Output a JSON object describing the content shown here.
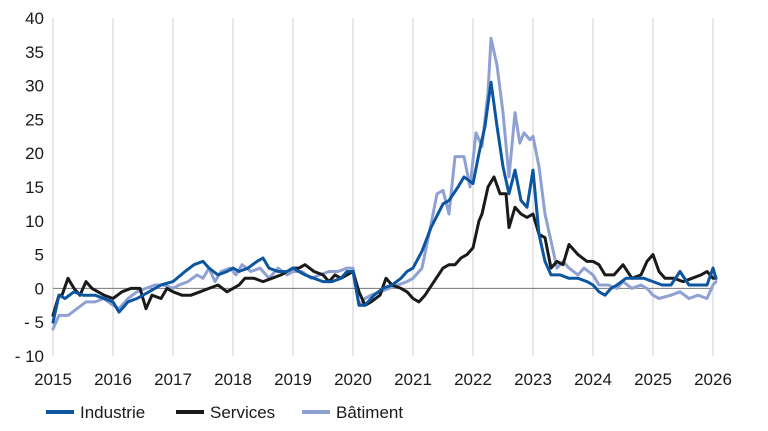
{
  "chart_data": {
    "type": "line",
    "title": "",
    "xlabel": "",
    "ylabel": "",
    "xlim": [
      2015,
      2026
    ],
    "ylim": [
      -10,
      40
    ],
    "grid": "vertical",
    "legend_position": "bottom-left",
    "x_ticks": [
      2015,
      2016,
      2017,
      2018,
      2019,
      2020,
      2021,
      2022,
      2023,
      2024,
      2025,
      2026
    ],
    "x_tick_labels": [
      "2015",
      "2016",
      "2017",
      "2018",
      "2019",
      "2020",
      "2021",
      "2022",
      "2023",
      "2024",
      "2025",
      "2026"
    ],
    "y_ticks": [
      -10,
      -5,
      0,
      5,
      10,
      15,
      20,
      25,
      30,
      35,
      40
    ],
    "y_tick_labels": [
      "- 10",
      "- 5",
      "0",
      "5",
      "10",
      "15",
      "20",
      "25",
      "30",
      "35",
      "40"
    ],
    "series": [
      {
        "name": "Industrie",
        "color": "#0c56a0",
        "points": [
          [
            2015.0,
            -5
          ],
          [
            2015.1,
            -1
          ],
          [
            2015.2,
            -1.5
          ],
          [
            2015.35,
            -0.5
          ],
          [
            2015.5,
            -1
          ],
          [
            2015.7,
            -1
          ],
          [
            2015.85,
            -1.5
          ],
          [
            2016.0,
            -2
          ],
          [
            2016.1,
            -3.5
          ],
          [
            2016.25,
            -2
          ],
          [
            2016.4,
            -1.5
          ],
          [
            2016.6,
            -0.5
          ],
          [
            2016.8,
            0.5
          ],
          [
            2017.0,
            1
          ],
          [
            2017.2,
            2.5
          ],
          [
            2017.35,
            3.5
          ],
          [
            2017.5,
            4
          ],
          [
            2017.6,
            3
          ],
          [
            2017.75,
            2
          ],
          [
            2017.9,
            2.5
          ],
          [
            2018.0,
            3
          ],
          [
            2018.1,
            2.5
          ],
          [
            2018.25,
            3
          ],
          [
            2018.4,
            4
          ],
          [
            2018.5,
            4.5
          ],
          [
            2018.6,
            3
          ],
          [
            2018.75,
            2.5
          ],
          [
            2018.9,
            2.5
          ],
          [
            2019.0,
            3
          ],
          [
            2019.2,
            2
          ],
          [
            2019.35,
            1.5
          ],
          [
            2019.5,
            1
          ],
          [
            2019.65,
            1
          ],
          [
            2019.8,
            1.5
          ],
          [
            2019.9,
            2.5
          ],
          [
            2020.0,
            2.5
          ],
          [
            2020.1,
            -2.5
          ],
          [
            2020.2,
            -2.5
          ],
          [
            2020.35,
            -1
          ],
          [
            2020.5,
            0
          ],
          [
            2020.65,
            0.5
          ],
          [
            2020.8,
            1.5
          ],
          [
            2020.9,
            2.5
          ],
          [
            2021.0,
            3
          ],
          [
            2021.15,
            5.5
          ],
          [
            2021.3,
            9
          ],
          [
            2021.5,
            12.5
          ],
          [
            2021.6,
            13
          ],
          [
            2021.75,
            15
          ],
          [
            2021.85,
            16.5
          ],
          [
            2022.0,
            15.5
          ],
          [
            2022.1,
            20
          ],
          [
            2022.2,
            24
          ],
          [
            2022.3,
            30.5
          ],
          [
            2022.4,
            24
          ],
          [
            2022.5,
            18
          ],
          [
            2022.6,
            14
          ],
          [
            2022.7,
            17.5
          ],
          [
            2022.8,
            13
          ],
          [
            2022.9,
            12
          ],
          [
            2023.0,
            17.5
          ],
          [
            2023.1,
            8
          ],
          [
            2023.2,
            4
          ],
          [
            2023.3,
            2
          ],
          [
            2023.45,
            2
          ],
          [
            2023.6,
            1.5
          ],
          [
            2023.75,
            1.5
          ],
          [
            2023.9,
            1
          ],
          [
            2024.0,
            0.5
          ],
          [
            2024.1,
            -0.5
          ],
          [
            2024.2,
            -1
          ],
          [
            2024.3,
            0
          ],
          [
            2024.4,
            0.5
          ],
          [
            2024.55,
            1.5
          ],
          [
            2024.7,
            1.5
          ],
          [
            2024.85,
            1.5
          ],
          [
            2025.0,
            1
          ],
          [
            2025.15,
            0.5
          ],
          [
            2025.3,
            0.5
          ],
          [
            2025.45,
            2.5
          ],
          [
            2025.6,
            0.5
          ],
          [
            2025.75,
            0.5
          ],
          [
            2025.9,
            0.5
          ],
          [
            2026.0,
            3
          ],
          [
            2026.05,
            1.5
          ]
        ]
      },
      {
        "name": "Services",
        "color": "#1a1a1a",
        "points": [
          [
            2015.0,
            -4
          ],
          [
            2015.1,
            -1
          ],
          [
            2015.15,
            -1
          ],
          [
            2015.25,
            1.5
          ],
          [
            2015.35,
            0
          ],
          [
            2015.45,
            -1
          ],
          [
            2015.55,
            1
          ],
          [
            2015.65,
            0
          ],
          [
            2015.75,
            -0.5
          ],
          [
            2015.85,
            -1
          ],
          [
            2016.0,
            -1.5
          ],
          [
            2016.15,
            -0.5
          ],
          [
            2016.3,
            0
          ],
          [
            2016.45,
            0
          ],
          [
            2016.55,
            -3
          ],
          [
            2016.65,
            -1
          ],
          [
            2016.8,
            -1.5
          ],
          [
            2016.9,
            0
          ],
          [
            2017.0,
            -0.5
          ],
          [
            2017.15,
            -1
          ],
          [
            2017.3,
            -1
          ],
          [
            2017.45,
            -0.5
          ],
          [
            2017.6,
            0
          ],
          [
            2017.75,
            0.5
          ],
          [
            2017.9,
            -0.5
          ],
          [
            2018.0,
            0
          ],
          [
            2018.1,
            0.5
          ],
          [
            2018.2,
            1.5
          ],
          [
            2018.35,
            1.5
          ],
          [
            2018.5,
            1
          ],
          [
            2018.65,
            1.5
          ],
          [
            2018.8,
            2
          ],
          [
            2018.9,
            2.5
          ],
          [
            2019.0,
            3
          ],
          [
            2019.1,
            3
          ],
          [
            2019.2,
            3.5
          ],
          [
            2019.35,
            2.5
          ],
          [
            2019.5,
            2
          ],
          [
            2019.6,
            1
          ],
          [
            2019.7,
            2
          ],
          [
            2019.8,
            1.5
          ],
          [
            2019.9,
            2
          ],
          [
            2020.0,
            2.5
          ],
          [
            2020.1,
            -0.5
          ],
          [
            2020.2,
            -2.5
          ],
          [
            2020.3,
            -2
          ],
          [
            2020.45,
            -1
          ],
          [
            2020.55,
            1.5
          ],
          [
            2020.65,
            0.5
          ],
          [
            2020.8,
            0
          ],
          [
            2020.9,
            -0.5
          ],
          [
            2021.0,
            -1.5
          ],
          [
            2021.1,
            -2
          ],
          [
            2021.2,
            -1
          ],
          [
            2021.35,
            1
          ],
          [
            2021.5,
            3
          ],
          [
            2021.6,
            3.5
          ],
          [
            2021.7,
            3.5
          ],
          [
            2021.8,
            4.5
          ],
          [
            2021.9,
            5
          ],
          [
            2022.0,
            6
          ],
          [
            2022.1,
            10
          ],
          [
            2022.15,
            11
          ],
          [
            2022.25,
            15
          ],
          [
            2022.35,
            16.5
          ],
          [
            2022.45,
            14
          ],
          [
            2022.55,
            14
          ],
          [
            2022.6,
            9
          ],
          [
            2022.7,
            12
          ],
          [
            2022.8,
            11
          ],
          [
            2022.9,
            10.5
          ],
          [
            2023.0,
            11
          ],
          [
            2023.1,
            8
          ],
          [
            2023.2,
            7.5
          ],
          [
            2023.3,
            3
          ],
          [
            2023.4,
            4
          ],
          [
            2023.5,
            3.5
          ],
          [
            2023.6,
            6.5
          ],
          [
            2023.75,
            5
          ],
          [
            2023.9,
            4
          ],
          [
            2024.0,
            4
          ],
          [
            2024.1,
            3.5
          ],
          [
            2024.2,
            2
          ],
          [
            2024.35,
            2
          ],
          [
            2024.5,
            3.5
          ],
          [
            2024.65,
            1.5
          ],
          [
            2024.8,
            2
          ],
          [
            2024.9,
            4
          ],
          [
            2025.0,
            5
          ],
          [
            2025.1,
            2.5
          ],
          [
            2025.2,
            1.5
          ],
          [
            2025.35,
            1.5
          ],
          [
            2025.5,
            1
          ],
          [
            2025.65,
            1.5
          ],
          [
            2025.8,
            2
          ],
          [
            2025.9,
            2.5
          ],
          [
            2026.0,
            1.5
          ],
          [
            2026.05,
            1.5
          ]
        ]
      },
      {
        "name": "Bâtiment",
        "color": "#8fa1d3",
        "points": [
          [
            2015.0,
            -6
          ],
          [
            2015.1,
            -4
          ],
          [
            2015.25,
            -4
          ],
          [
            2015.4,
            -3
          ],
          [
            2015.55,
            -2
          ],
          [
            2015.7,
            -2
          ],
          [
            2015.85,
            -1.5
          ],
          [
            2016.0,
            -2.5
          ],
          [
            2016.1,
            -3
          ],
          [
            2016.25,
            -1.5
          ],
          [
            2016.4,
            -0.5
          ],
          [
            2016.55,
            0
          ],
          [
            2016.7,
            0.5
          ],
          [
            2016.85,
            0.5
          ],
          [
            2017.0,
            0
          ],
          [
            2017.1,
            0.5
          ],
          [
            2017.25,
            1
          ],
          [
            2017.4,
            2
          ],
          [
            2017.5,
            1.5
          ],
          [
            2017.6,
            3
          ],
          [
            2017.7,
            1
          ],
          [
            2017.8,
            2.5
          ],
          [
            2017.95,
            3
          ],
          [
            2018.05,
            2
          ],
          [
            2018.15,
            3.5
          ],
          [
            2018.3,
            2.5
          ],
          [
            2018.45,
            3
          ],
          [
            2018.6,
            1.5
          ],
          [
            2018.75,
            3
          ],
          [
            2018.9,
            2
          ],
          [
            2019.0,
            2.5
          ],
          [
            2019.15,
            2.5
          ],
          [
            2019.3,
            1.5
          ],
          [
            2019.45,
            2
          ],
          [
            2019.6,
            2.5
          ],
          [
            2019.75,
            2.5
          ],
          [
            2019.9,
            3
          ],
          [
            2020.0,
            3
          ],
          [
            2020.1,
            -2.5
          ],
          [
            2020.2,
            -1.5
          ],
          [
            2020.3,
            -1
          ],
          [
            2020.45,
            -0.5
          ],
          [
            2020.6,
            0
          ],
          [
            2020.75,
            0.5
          ],
          [
            2020.9,
            1
          ],
          [
            2021.0,
            1.5
          ],
          [
            2021.15,
            3
          ],
          [
            2021.3,
            9.5
          ],
          [
            2021.4,
            14
          ],
          [
            2021.5,
            14.5
          ],
          [
            2021.6,
            11
          ],
          [
            2021.7,
            19.5
          ],
          [
            2021.85,
            19.5
          ],
          [
            2021.95,
            15
          ],
          [
            2022.05,
            23
          ],
          [
            2022.15,
            21
          ],
          [
            2022.25,
            29
          ],
          [
            2022.3,
            37
          ],
          [
            2022.4,
            33
          ],
          [
            2022.5,
            26
          ],
          [
            2022.6,
            16.5
          ],
          [
            2022.7,
            26
          ],
          [
            2022.78,
            21.5
          ],
          [
            2022.85,
            23
          ],
          [
            2022.95,
            22
          ],
          [
            2023.0,
            22.5
          ],
          [
            2023.1,
            18
          ],
          [
            2023.2,
            11
          ],
          [
            2023.3,
            7
          ],
          [
            2023.4,
            3
          ],
          [
            2023.5,
            4
          ],
          [
            2023.6,
            3
          ],
          [
            2023.75,
            2
          ],
          [
            2023.85,
            3
          ],
          [
            2024.0,
            2
          ],
          [
            2024.1,
            0.5
          ],
          [
            2024.25,
            0.5
          ],
          [
            2024.4,
            0
          ],
          [
            2024.5,
            1
          ],
          [
            2024.65,
            0
          ],
          [
            2024.8,
            0.5
          ],
          [
            2024.9,
            0
          ],
          [
            2025.0,
            -1
          ],
          [
            2025.1,
            -1.5
          ],
          [
            2025.3,
            -1
          ],
          [
            2025.45,
            -0.5
          ],
          [
            2025.6,
            -1.5
          ],
          [
            2025.75,
            -1
          ],
          [
            2025.9,
            -1.5
          ],
          [
            2026.0,
            0.5
          ],
          [
            2026.05,
            1
          ]
        ]
      }
    ]
  }
}
